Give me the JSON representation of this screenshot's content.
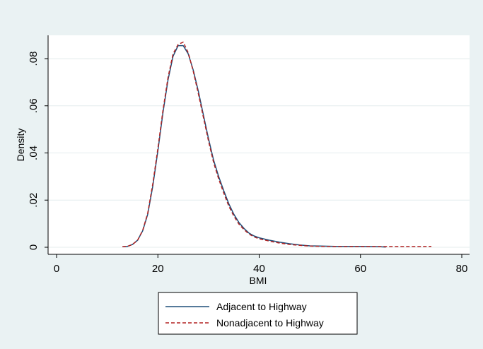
{
  "chart_data": {
    "type": "line",
    "xlabel": "BMI",
    "ylabel": "Density",
    "xlim": [
      0,
      80
    ],
    "ylim": [
      0,
      0.09
    ],
    "x_ticks": [
      0,
      20,
      40,
      60,
      80
    ],
    "x_tick_labels": [
      "0",
      "20",
      "40",
      "60",
      "80"
    ],
    "y_ticks": [
      0,
      0.02,
      0.04,
      0.06,
      0.08
    ],
    "y_tick_labels": [
      "0",
      ".02",
      ".04",
      ".06",
      ".08"
    ],
    "grid": true,
    "legend_position": "bottom",
    "series": [
      {
        "name": "Adjacent to Highway",
        "color": "#1f4e79",
        "style": "solid",
        "x": [
          13,
          14,
          15,
          16,
          17,
          18,
          19,
          20,
          21,
          22,
          23,
          24,
          25,
          26,
          27,
          28,
          29,
          30,
          31,
          32,
          33,
          34,
          35,
          36,
          37,
          38,
          39,
          40,
          42,
          44,
          46,
          48,
          50,
          52,
          55,
          58,
          60,
          62,
          64,
          65
        ],
        "y": [
          0.0002,
          0.0004,
          0.0012,
          0.003,
          0.007,
          0.014,
          0.026,
          0.041,
          0.057,
          0.071,
          0.081,
          0.0855,
          0.0855,
          0.082,
          0.075,
          0.066,
          0.056,
          0.046,
          0.037,
          0.03,
          0.024,
          0.0185,
          0.014,
          0.0105,
          0.008,
          0.006,
          0.0048,
          0.004,
          0.003,
          0.0022,
          0.0015,
          0.001,
          0.0006,
          0.0005,
          0.0004,
          0.0004,
          0.0004,
          0.0003,
          0.0002,
          0.0001
        ]
      },
      {
        "name": "Nonadjacent to Highway",
        "color": "#b22222",
        "style": "dashed",
        "x": [
          13,
          14,
          15,
          16,
          17,
          18,
          19,
          20,
          21,
          22,
          23,
          24,
          25,
          26,
          27,
          28,
          29,
          30,
          31,
          32,
          33,
          34,
          35,
          36,
          37,
          38,
          39,
          40,
          42,
          44,
          46,
          48,
          50,
          52,
          55,
          58,
          60,
          62,
          64,
          66,
          68,
          70,
          72,
          74
        ],
        "y": [
          0.0002,
          0.0004,
          0.0012,
          0.003,
          0.0072,
          0.0145,
          0.027,
          0.042,
          0.058,
          0.072,
          0.082,
          0.086,
          0.087,
          0.0825,
          0.0745,
          0.065,
          0.055,
          0.045,
          0.036,
          0.029,
          0.023,
          0.0175,
          0.0132,
          0.0098,
          0.0075,
          0.0056,
          0.0044,
          0.0036,
          0.0026,
          0.0018,
          0.0012,
          0.0008,
          0.0005,
          0.0004,
          0.0003,
          0.0003,
          0.0003,
          0.0003,
          0.0003,
          0.0003,
          0.0003,
          0.0003,
          0.0003,
          0.0004
        ]
      }
    ]
  }
}
